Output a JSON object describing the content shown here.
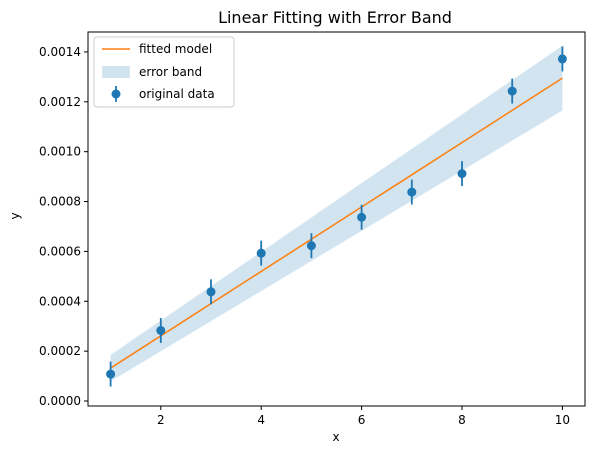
{
  "chart_data": {
    "type": "line",
    "title": "Linear Fitting with Error Band",
    "xlabel": "x",
    "ylabel": "y",
    "xlim": [
      0.55,
      10.45
    ],
    "ylim": [
      -2e-05,
      0.00148
    ],
    "xticks": [
      2,
      4,
      6,
      8,
      10
    ],
    "xtick_labels": [
      "2",
      "4",
      "6",
      "8",
      "10"
    ],
    "yticks": [
      0.0,
      0.0002,
      0.0004,
      0.0006,
      0.0008,
      0.001,
      0.0012,
      0.0014
    ],
    "ytick_labels": [
      "0.0000",
      "0.0002",
      "0.0004",
      "0.0006",
      "0.0008",
      "0.0010",
      "0.0012",
      "0.0014"
    ],
    "grid": false,
    "legend_position": "top-left",
    "series": [
      {
        "name": "fitted model",
        "kind": "line",
        "color": "#ff7f0e",
        "x": [
          1,
          10
        ],
        "y": [
          0.000132,
          0.001295
        ]
      },
      {
        "name": "error band",
        "kind": "band",
        "color": "#1f77b4",
        "opacity": 0.2,
        "x": [
          1,
          10
        ],
        "y_lower": [
          7.9e-05,
          0.001165
        ],
        "y_upper": [
          0.000185,
          0.001425
        ]
      },
      {
        "name": "original data",
        "kind": "errorbar",
        "color": "#1f77b4",
        "x": [
          1,
          2,
          3,
          4,
          5,
          6,
          7,
          8,
          9,
          10
        ],
        "y": [
          0.000108,
          0.000283,
          0.000438,
          0.000593,
          0.000623,
          0.000737,
          0.000838,
          0.000912,
          0.001243,
          0.001372
        ],
        "yerr": [
          5e-05,
          5e-05,
          5e-05,
          5e-05,
          5e-05,
          5e-05,
          5e-05,
          5e-05,
          5e-05,
          5e-05
        ]
      }
    ],
    "legend": [
      "fitted model",
      "error band",
      "original data"
    ]
  }
}
